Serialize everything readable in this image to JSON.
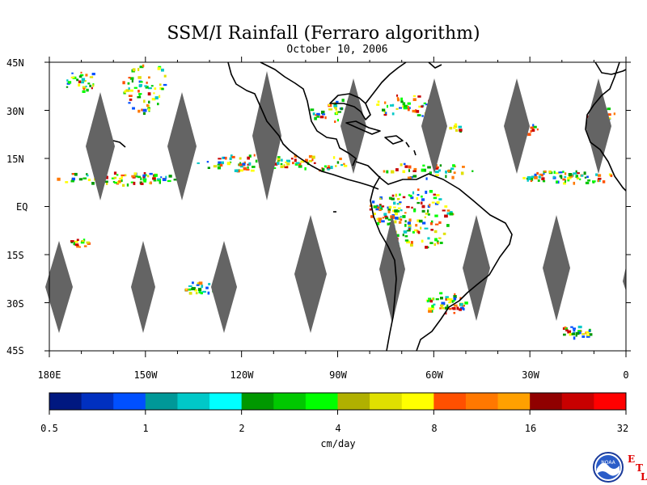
{
  "title": "SSM/I Rainfall (Ferraro algorithm)",
  "date": "October 10, 2006",
  "lat_labels": [
    "45N",
    "30N",
    "15N",
    "EQ",
    "15S",
    "30S",
    "45S"
  ],
  "lon_labels": [
    "180E",
    "150W",
    "120W",
    "90W",
    "60W",
    "30W",
    "0"
  ],
  "colorbar": {
    "colors": [
      "#001880",
      "#0030c0",
      "#0050ff",
      "#009898",
      "#00c8c8",
      "#00ffff",
      "#009800",
      "#00c800",
      "#00ff00",
      "#b0b000",
      "#e0e000",
      "#ffff00",
      "#ff5000",
      "#ff7800",
      "#ffa000",
      "#900000",
      "#c80000",
      "#ff0000"
    ],
    "tick_labels": [
      "0.5",
      "1",
      "2",
      "4",
      "8",
      "16",
      "32"
    ],
    "units": "cm/day"
  },
  "logo": {
    "text": "NOAA",
    "icon": "noaa-logo-icon",
    "letters": [
      "E",
      "T",
      "L"
    ]
  },
  "colors": {
    "land_outline": "#000000",
    "gap_swath": "#646464",
    "background": "#ffffff"
  }
}
